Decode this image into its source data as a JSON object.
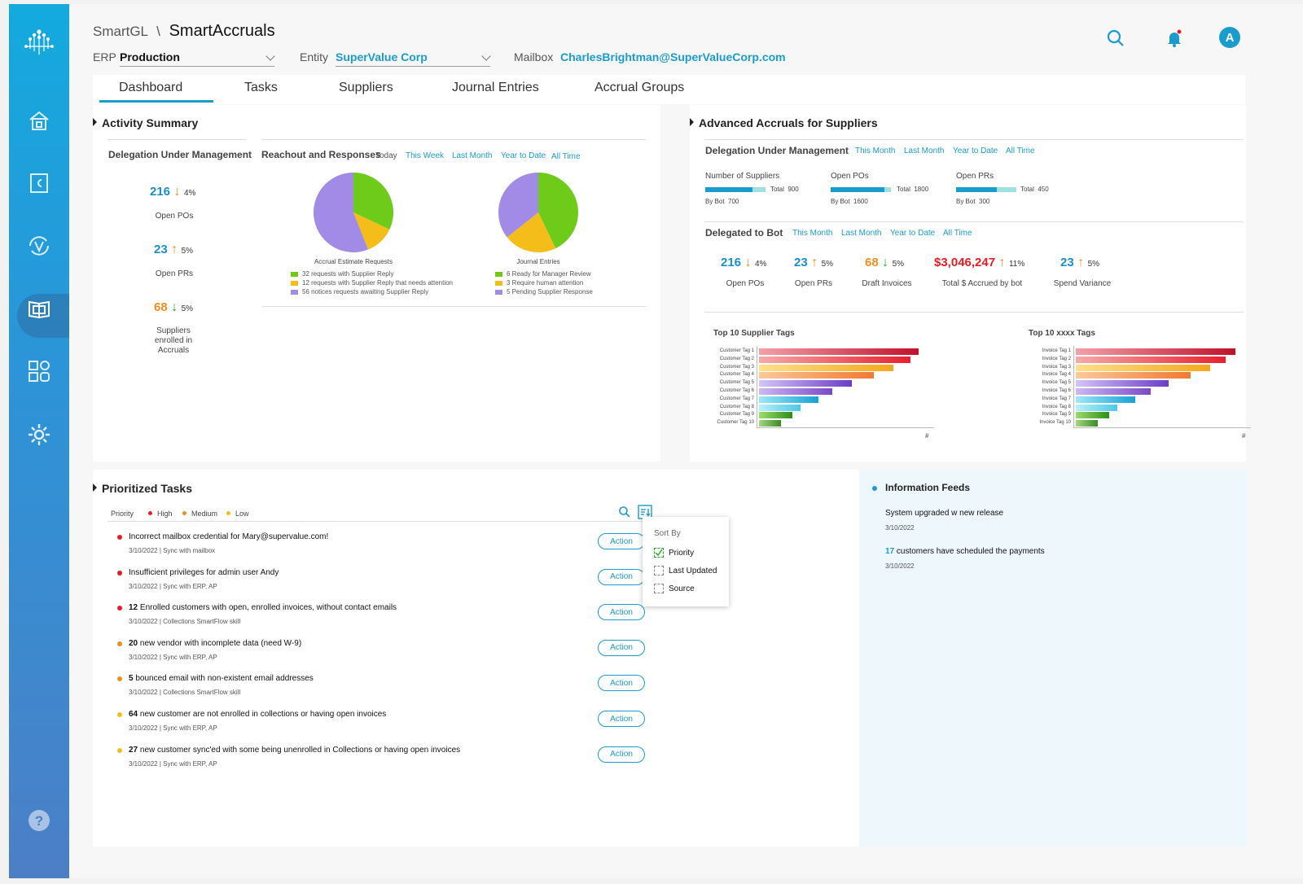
{
  "header": {
    "app": "SmartGL",
    "sep": "\\",
    "title": "SmartAccruals",
    "erp_label": "ERP",
    "erp_value": "Production",
    "entity_label": "Entity",
    "entity_value": "SuperValue Corp",
    "mailbox_label": "Mailbox",
    "mailbox_value": "CharlesBrightman@SuperValueCorp.com",
    "avatar": "A"
  },
  "tabs": [
    "Dashboard",
    "Tasks",
    "Suppliers",
    "Journal Entries",
    "Accrual Groups"
  ],
  "activity": {
    "title": "Activity Summary",
    "dum_title": "Delegation Under Management",
    "kpis": [
      {
        "value": "216",
        "pct": "4%",
        "dir": "down",
        "color": "#1a8fc8",
        "label": "Open POs"
      },
      {
        "value": "23",
        "pct": "5%",
        "dir": "up",
        "color": "#1a8fc8",
        "label": "Open PRs"
      },
      {
        "value": "68",
        "pct": "5%",
        "dir": "down",
        "color": "#f28c1e",
        "label": "Suppliers enrolled in Accruals"
      }
    ],
    "rr_title": "Reachout and Responses",
    "rr_filters": [
      "Today",
      "This Week",
      "Last Month",
      "Year to Date",
      "All Time"
    ],
    "pie1_title": "Accrual Estimate Requests",
    "pie1_legend": [
      "32 requests with Supplier Reply",
      "12 requests with Supplier Reply that needs attention",
      "56 notices requests awaiting Supplier Reply"
    ],
    "pie2_title": "Journal Entries",
    "pie2_legend": [
      "6 Ready for Manager Review",
      "3 Require human attention",
      "5 Pending Supplier Response"
    ]
  },
  "chart_data": [
    {
      "type": "pie",
      "title": "Accrual Estimate Requests",
      "labels": [
        "32 requests with Supplier Reply",
        "12 requests with Supplier Reply that needs attention",
        "56 notices requests awaiting Supplier Reply"
      ],
      "values": [
        32,
        12,
        56
      ],
      "colors": [
        "#6ecb1a",
        "#f5bd1a",
        "#a18be6"
      ]
    },
    {
      "type": "pie",
      "title": "Journal Entries",
      "labels": [
        "6 Ready for Manager Review",
        "3 Require human attention",
        "5 Pending Supplier Response"
      ],
      "values": [
        6,
        3,
        5
      ],
      "colors": [
        "#6ecb1a",
        "#f5bd1a",
        "#a18be6"
      ]
    },
    {
      "type": "bar",
      "title": "Top 10 Supplier Tags",
      "categories": [
        "Customer Tag 1",
        "Customer Tag 2",
        "Customer Tag 3",
        "Customer Tag 4",
        "Customer Tag 5",
        "Customer Tag 6",
        "Customer Tag 7",
        "Customer Tag 8",
        "Customer Tag 9",
        "Customer Tag 10"
      ],
      "values": [
        100,
        95,
        84,
        72,
        58,
        46,
        37,
        26,
        21,
        14
      ],
      "xlabel": "#"
    },
    {
      "type": "bar",
      "title": "Top 10 xxxx Tags",
      "categories": [
        "Invoice Tag 1",
        "Invoice Tag 2",
        "Invoice Tag 3",
        "Invoice Tag 4",
        "Invoice Tag 5",
        "Invoice Tag 6",
        "Invoice Tag 7",
        "Invoice Tag 8",
        "Invoice Tag 9",
        "Invoice Tag 10"
      ],
      "values": [
        100,
        94,
        84,
        72,
        58,
        47,
        37,
        26,
        21,
        14
      ],
      "xlabel": "#"
    }
  ],
  "bar_colors": [
    [
      "#f4a0a8",
      "#c0102a"
    ],
    [
      "#f6aaa8",
      "#e8202e"
    ],
    [
      "#fde08a",
      "#f5a81a"
    ],
    [
      "#fcc89a",
      "#f07a32"
    ],
    [
      "#d3c6f6",
      "#6c3cc8"
    ],
    [
      "#cdb8f2",
      "#7a48c8"
    ],
    [
      "#9ee8f6",
      "#16a2d6"
    ],
    [
      "#b8f0f8",
      "#4cc8e8"
    ],
    [
      "#9fdc6a",
      "#2e8e1a"
    ],
    [
      "#a6d87e",
      "#3a8a28"
    ]
  ],
  "advanced": {
    "title": "Advanced Accruals for Suppliers",
    "dum_title": "Delegation Under Management",
    "filters": [
      "This Month",
      "Last Month",
      "Year to Date",
      "All Time"
    ],
    "metrics": [
      {
        "label": "Number of Suppliers",
        "total_label": "Total",
        "total": "900",
        "bybot_label": "By Bot",
        "bybot": "700",
        "ratio": 0.78
      },
      {
        "label": "Open POs",
        "total_label": "Total",
        "total": "1800",
        "bybot_label": "By Bot",
        "bybot": "1600",
        "ratio": 0.89
      },
      {
        "label": "Open PRs",
        "total_label": "Total",
        "total": "450",
        "bybot_label": "By Bot",
        "bybot": "300",
        "ratio": 0.67
      }
    ],
    "dtb_title": "Delegated to Bot",
    "dtb_filters": [
      "This Month",
      "Last Month",
      "Year to Date",
      "All Time"
    ],
    "kpis": [
      {
        "value": "216",
        "pct": "4%",
        "dir": "down",
        "color": "#1a8fc8",
        "label": "Open POs"
      },
      {
        "value": "23",
        "pct": "5%",
        "dir": "up",
        "color": "#1a8fc8",
        "label": "Open PRs"
      },
      {
        "value": "68",
        "pct": "5%",
        "dir": "down",
        "color": "#f28c1e",
        "label": "Draft Invoices"
      },
      {
        "value": "$3,046,247",
        "pct": "11%",
        "dir": "up",
        "color": "#e61c24",
        "label": "Total $ Accrued by bot"
      },
      {
        "value": "23",
        "pct": "5%",
        "dir": "up",
        "color": "#1a8fc8",
        "label": "Spend Variance"
      }
    ],
    "chart1_title": "Top 10 Supplier Tags",
    "chart2_title": "Top 10 xxxx Tags",
    "axis_hash": "#"
  },
  "tasks": {
    "title": "Prioritized Tasks",
    "priority_label": "Priority",
    "levels": [
      {
        "label": "High",
        "color": "#e61c24"
      },
      {
        "label": "Medium",
        "color": "#f28c1e"
      },
      {
        "label": "Low",
        "color": "#f5bd1a"
      }
    ],
    "action_label": "Action",
    "items": [
      {
        "num": "",
        "text": "Incorrect mailbox credential for Mary@supervalue.com!",
        "sub": "3/10/2022 | Sync with mailbox",
        "color": "#e61c24"
      },
      {
        "num": "",
        "text": "Insufficient privileges for admin user Andy",
        "sub": "3/10/2022 | Sync with ERP, AP",
        "color": "#e61c24"
      },
      {
        "num": "12",
        "text": " Enrolled customers with open, enrolled invoices, without contact emails",
        "sub": "3/10/2022 | Collections SmartFlow skill",
        "color": "#e61c24"
      },
      {
        "num": "20",
        "text": " new vendor with incomplete data (need W-9)",
        "sub": "3/10/2022 | Sync with ERP, AP",
        "color": "#f28c1e"
      },
      {
        "num": "5",
        "text": " bounced email with non-existent email addresses",
        "sub": "3/10/2022 | Collections SmartFlow skill",
        "color": "#f28c1e"
      },
      {
        "num": "64",
        "text": " new customer are not enrolled in collections or having open invoices",
        "sub": "3/10/2022 | Sync with ERP, AP",
        "color": "#f5bd1a"
      },
      {
        "num": "27",
        "text": " new customer sync'ed with some being unenrolled in Collections or having open invoices",
        "sub": "3/10/2022 | Sync with ERP, AP",
        "color": "#f5bd1a"
      }
    ],
    "sort_title": "Sort By",
    "sort_options": [
      {
        "label": "Priority",
        "checked": true
      },
      {
        "label": "Last Updated",
        "checked": false
      },
      {
        "label": "Source",
        "checked": false
      }
    ]
  },
  "feeds": {
    "title": "Information Feeds",
    "items": [
      {
        "num": "",
        "text": "System upgraded w new release",
        "date": "3/10/2022"
      },
      {
        "num": "17",
        "text": " customers have scheduled the payments",
        "date": "3/10/2022"
      }
    ]
  },
  "colors": {
    "accent": "#1a9ccc",
    "up": "#f28c1e",
    "down_good": "#2aa82a"
  }
}
